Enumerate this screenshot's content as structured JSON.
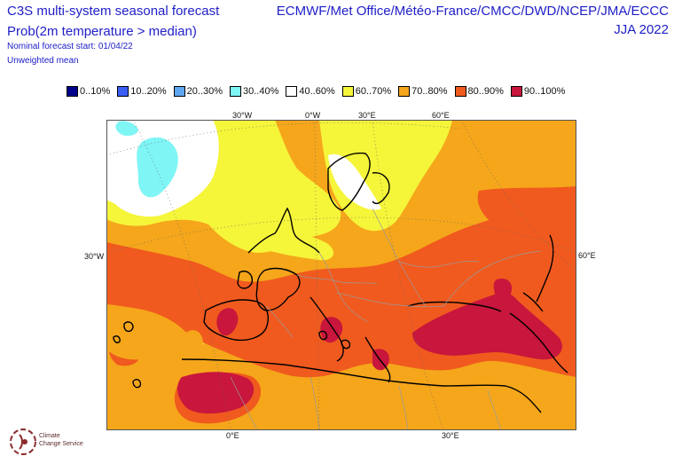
{
  "header": {
    "title": "C3S multi-system seasonal forecast",
    "subtitle": "Prob(2m temperature > median)",
    "start": "Nominal forecast start: 01/04/22",
    "mean": "Unweighted mean",
    "systems": "ECMWF/Met Office/Météo-France/CMCC/DWD/NCEP/JMA/ECCC",
    "season": "JJA 2022"
  },
  "legend": [
    {
      "label": "0..10%",
      "color": "#00008b"
    },
    {
      "label": "10..20%",
      "color": "#3b5ef5"
    },
    {
      "label": "20..30%",
      "color": "#5fa7f0"
    },
    {
      "label": "30..40%",
      "color": "#7ff5f5"
    },
    {
      "label": "40..60%",
      "color": "#ffffff"
    },
    {
      "label": "60..70%",
      "color": "#f5f53a"
    },
    {
      "label": "70..80%",
      "color": "#f5a61b"
    },
    {
      "label": "80..90%",
      "color": "#f05a1e"
    },
    {
      "label": "90..100%",
      "color": "#c8163c"
    }
  ],
  "grid_labels": {
    "top": [
      "30°W",
      "0°W",
      "30°E",
      "60°E"
    ],
    "left": "30°W",
    "right": "60°E",
    "bottom": [
      "0°E",
      "30°E"
    ]
  },
  "logo": {
    "line1": "Climate",
    "line2": "Change Service"
  }
}
